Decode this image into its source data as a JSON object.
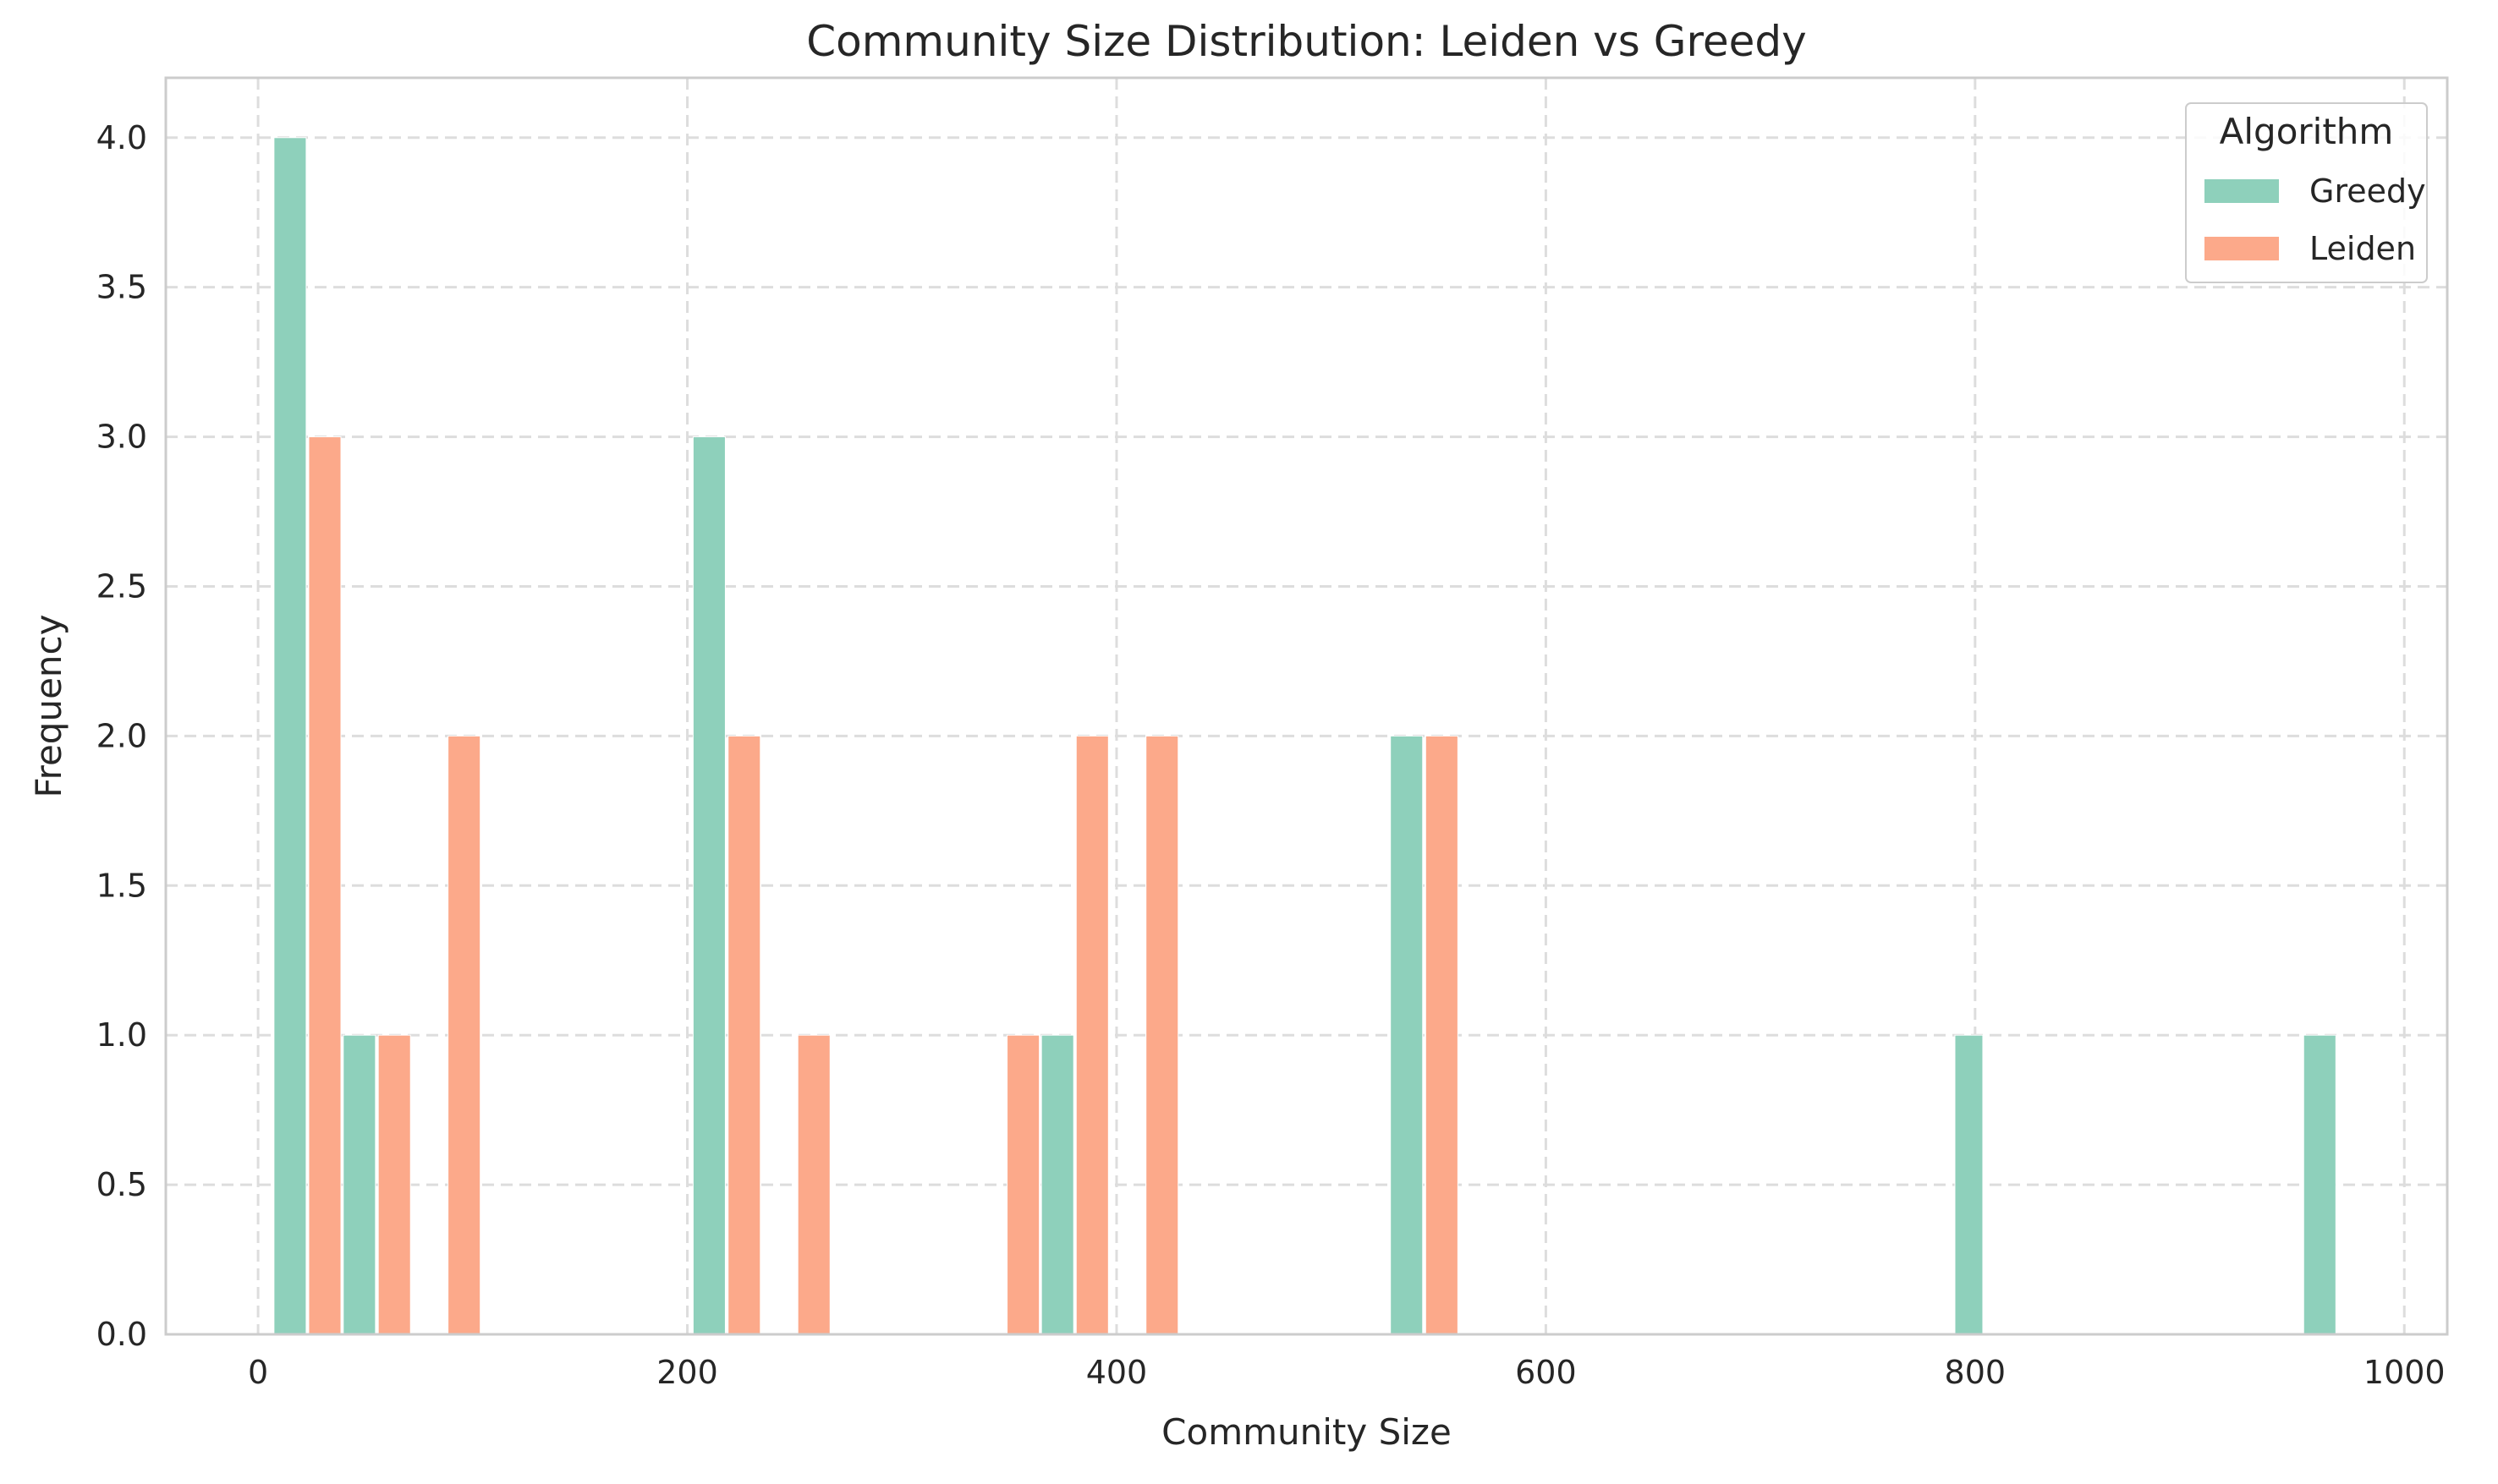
{
  "chart_data": {
    "type": "bar",
    "title": "Community Size Distribution: Leiden vs Greedy",
    "xlabel": "Community Size",
    "ylabel": "Frequency",
    "xlim": [
      -43,
      1020
    ],
    "ylim": [
      0,
      4.2
    ],
    "xticks": [
      0,
      200,
      400,
      600,
      800,
      1000
    ],
    "yticks": [
      0.0,
      0.5,
      1.0,
      1.5,
      2.0,
      2.5,
      3.0,
      3.5,
      4.0
    ],
    "ytick_labels": [
      "0.0",
      "0.5",
      "1.0",
      "1.5",
      "2.0",
      "2.5",
      "3.0",
      "3.5",
      "4.0"
    ],
    "grid": true,
    "legend": {
      "title": "Algorithm",
      "position": "top-right"
    },
    "series": [
      {
        "name": "Greedy",
        "color": "#8ed0bb",
        "bars": [
          {
            "x0": 7.4,
            "x1": 22.4,
            "value": 4
          },
          {
            "x0": 39.7,
            "x1": 54.7,
            "value": 1
          },
          {
            "x0": 202.7,
            "x1": 217.7,
            "value": 3
          },
          {
            "x0": 365.0,
            "x1": 380.0,
            "value": 1
          },
          {
            "x0": 527.6,
            "x1": 542.6,
            "value": 2
          },
          {
            "x0": 790.6,
            "x1": 803.6,
            "value": 1
          },
          {
            "x0": 953.1,
            "x1": 968.1,
            "value": 1
          }
        ]
      },
      {
        "name": "Leiden",
        "color": "#fca98a",
        "bars": [
          {
            "x0": 23.6,
            "x1": 38.6,
            "value": 3
          },
          {
            "x0": 56.0,
            "x1": 71.0,
            "value": 1
          },
          {
            "x0": 88.5,
            "x1": 103.5,
            "value": 2
          },
          {
            "x0": 219.0,
            "x1": 234.0,
            "value": 2
          },
          {
            "x0": 251.5,
            "x1": 266.5,
            "value": 1
          },
          {
            "x0": 349.0,
            "x1": 364.0,
            "value": 1
          },
          {
            "x0": 381.2,
            "x1": 396.2,
            "value": 2
          },
          {
            "x0": 413.7,
            "x1": 428.7,
            "value": 2
          },
          {
            "x0": 544.0,
            "x1": 559.0,
            "value": 2
          }
        ]
      }
    ]
  }
}
